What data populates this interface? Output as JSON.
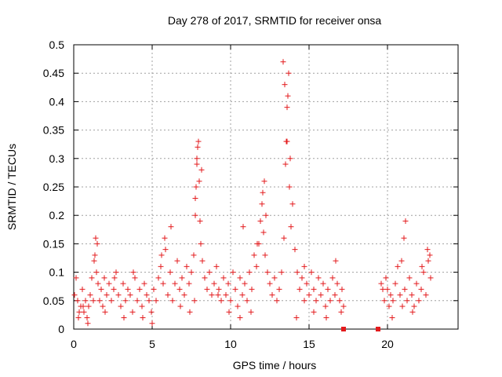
{
  "chart_data": {
    "type": "scatter",
    "title": "Day 278 of 2017, SRMTID for receiver onsa",
    "xlabel": "GPS time / hours",
    "ylabel": "SRMTID / TECUs",
    "xlim": [
      0,
      24.5
    ],
    "ylim": [
      0,
      0.5
    ],
    "x_ticks": [
      0,
      5,
      10,
      15,
      20
    ],
    "x_tick_labels": [
      "0",
      "5",
      "10",
      "15",
      "20"
    ],
    "y_ticks": [
      0,
      0.05,
      0.1,
      0.15,
      0.2,
      0.25,
      0.3,
      0.35,
      0.4,
      0.45,
      0.5
    ],
    "y_tick_labels": [
      "0",
      "0.05",
      "0.1",
      "0.15",
      "0.2",
      "0.25",
      "0.3",
      "0.35",
      "0.4",
      "0.45",
      "0.5"
    ],
    "grid": true,
    "series": [
      {
        "name": "SRMTID",
        "marker": "plus",
        "color": "#e31a1c",
        "x": [
          0.05,
          0.15,
          0.25,
          0.35,
          0.45,
          0.55,
          0.65,
          0.75,
          0.85,
          0.95,
          1.05,
          1.15,
          1.25,
          1.35,
          1.45,
          1.55,
          1.65,
          1.75,
          1.85,
          1.95,
          2.1,
          2.25,
          2.4,
          2.55,
          2.7,
          2.85,
          3.0,
          3.15,
          3.3,
          3.45,
          3.6,
          3.75,
          3.9,
          4.05,
          4.2,
          4.35,
          4.5,
          4.65,
          4.8,
          4.95,
          5.1,
          5.25,
          5.4,
          5.55,
          5.7,
          5.85,
          6.0,
          6.15,
          6.3,
          6.45,
          6.6,
          6.75,
          6.9,
          7.05,
          7.2,
          7.35,
          7.5,
          7.65,
          7.75,
          7.8,
          7.85,
          7.9,
          7.95,
          8.0,
          8.05,
          8.1,
          8.2,
          8.35,
          8.5,
          8.65,
          8.8,
          8.95,
          9.1,
          9.25,
          9.4,
          9.55,
          9.7,
          9.85,
          10.0,
          10.15,
          10.3,
          10.45,
          10.6,
          10.75,
          10.9,
          11.05,
          11.2,
          11.35,
          11.5,
          11.65,
          11.8,
          11.9,
          12.0,
          12.1,
          12.2,
          12.35,
          12.5,
          12.65,
          12.8,
          12.95,
          13.1,
          13.25,
          13.4,
          13.5,
          13.55,
          13.6,
          13.65,
          13.7,
          13.8,
          13.95,
          14.1,
          14.25,
          14.4,
          14.55,
          14.7,
          14.85,
          15.0,
          15.15,
          15.3,
          15.45,
          15.6,
          15.75,
          15.9,
          16.05,
          16.2,
          16.35,
          16.5,
          16.65,
          16.8,
          16.95,
          17.1,
          17.2,
          19.6,
          19.7,
          19.8,
          19.9,
          20.0,
          20.1,
          20.2,
          20.35,
          20.5,
          20.65,
          20.8,
          20.95,
          21.1,
          21.25,
          21.4,
          21.55,
          21.7,
          21.85,
          22.0,
          22.15,
          22.3,
          22.45,
          22.6,
          22.75,
          0.3,
          0.6,
          0.9,
          1.3,
          1.4,
          1.5,
          2.0,
          2.6,
          3.2,
          3.8,
          4.4,
          5.0,
          5.6,
          5.8,
          6.2,
          6.8,
          7.4,
          7.7,
          7.75,
          7.85,
          8.15,
          9.2,
          9.9,
          10.6,
          10.8,
          11.3,
          11.7,
          12.05,
          12.15,
          12.25,
          13.35,
          13.45,
          13.6,
          13.75,
          13.85,
          14.2,
          14.7,
          15.3,
          16.1,
          16.7,
          17.05,
          20.3,
          20.9,
          21.05,
          21.15,
          21.6,
          22.2,
          22.55,
          22.7
        ],
        "y": [
          0.06,
          0.09,
          0.05,
          0.03,
          0.04,
          0.07,
          0.03,
          0.05,
          0.02,
          0.04,
          0.06,
          0.09,
          0.05,
          0.13,
          0.1,
          0.08,
          0.05,
          0.07,
          0.04,
          0.09,
          0.06,
          0.08,
          0.05,
          0.07,
          0.1,
          0.06,
          0.04,
          0.08,
          0.05,
          0.07,
          0.06,
          0.03,
          0.09,
          0.05,
          0.07,
          0.04,
          0.08,
          0.06,
          0.05,
          0.03,
          0.07,
          0.05,
          0.09,
          0.11,
          0.08,
          0.14,
          0.06,
          0.1,
          0.05,
          0.08,
          0.12,
          0.07,
          0.09,
          0.06,
          0.11,
          0.08,
          0.1,
          0.13,
          0.23,
          0.25,
          0.29,
          0.32,
          0.33,
          0.26,
          0.19,
          0.15,
          0.12,
          0.09,
          0.07,
          0.1,
          0.06,
          0.08,
          0.11,
          0.07,
          0.05,
          0.09,
          0.06,
          0.08,
          0.05,
          0.1,
          0.07,
          0.04,
          0.09,
          0.06,
          0.08,
          0.05,
          0.1,
          0.07,
          0.13,
          0.11,
          0.15,
          0.19,
          0.22,
          0.17,
          0.13,
          0.1,
          0.08,
          0.06,
          0.09,
          0.05,
          0.07,
          0.1,
          0.16,
          0.29,
          0.33,
          0.39,
          0.41,
          0.45,
          0.3,
          0.22,
          0.14,
          0.1,
          0.07,
          0.09,
          0.05,
          0.08,
          0.06,
          0.1,
          0.07,
          0.05,
          0.09,
          0.06,
          0.08,
          0.04,
          0.07,
          0.05,
          0.09,
          0.06,
          0.08,
          0.05,
          0.07,
          0.04,
          0.08,
          0.07,
          0.05,
          0.09,
          0.07,
          0.04,
          0.06,
          0.05,
          0.08,
          0.11,
          0.06,
          0.04,
          0.07,
          0.05,
          0.09,
          0.06,
          0.04,
          0.08,
          0.05,
          0.07,
          0.1,
          0.06,
          0.12,
          0.09,
          0.02,
          0.04,
          0.01,
          0.12,
          0.16,
          0.15,
          0.03,
          0.09,
          0.02,
          0.1,
          0.02,
          0.01,
          0.13,
          0.16,
          0.18,
          0.04,
          0.03,
          0.05,
          0.2,
          0.3,
          0.28,
          0.06,
          0.03,
          0.02,
          0.18,
          0.03,
          0.15,
          0.24,
          0.26,
          0.2,
          0.47,
          0.43,
          0.33,
          0.25,
          0.18,
          0.02,
          0.11,
          0.03,
          0.02,
          0.12,
          0.03,
          0.02,
          0.12,
          0.16,
          0.19,
          0.03,
          0.11,
          0.14,
          0.13
        ]
      }
    ],
    "zero_markers_x": [
      17.2,
      19.4
    ]
  }
}
